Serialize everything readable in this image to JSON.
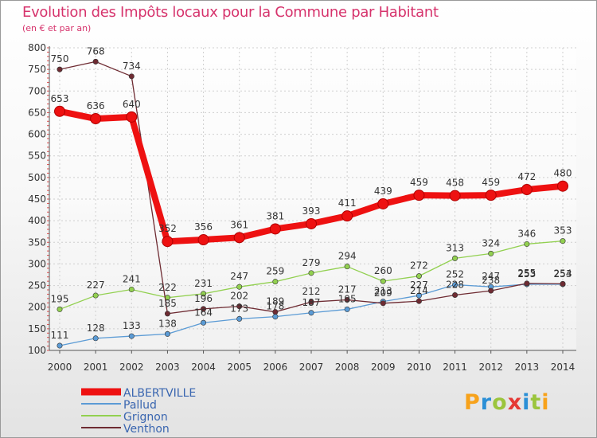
{
  "title": "Evolution des Impôts locaux pour la Commune par Habitant",
  "subtitle": "(en € et par an)",
  "logo": {
    "text": "Proxiti",
    "colors": [
      "#f7a21b",
      "#2b8fd6",
      "#9bc53d",
      "#e53935",
      "#2b8fd6",
      "#9bc53d",
      "#f7a21b"
    ]
  },
  "chart_data": {
    "type": "line",
    "x": [
      "2000",
      "2001",
      "2002",
      "2003",
      "2004",
      "2005",
      "2006",
      "2007",
      "2008",
      "2009",
      "2010",
      "2011",
      "2012",
      "2013",
      "2014"
    ],
    "ylim": [
      100,
      800
    ],
    "yticks": [
      "100",
      "150",
      "200",
      "250",
      "300",
      "350",
      "400",
      "450",
      "500",
      "550",
      "600",
      "650",
      "700",
      "750",
      "800"
    ],
    "grid": true,
    "legend_position": "bottom-left",
    "series": [
      {
        "name": "ALBERTVILLE",
        "color": "#ee1111",
        "thick": true,
        "values": [
          653,
          636,
          640,
          352,
          356,
          361,
          381,
          393,
          411,
          439,
          459,
          458,
          459,
          472,
          480
        ],
        "labels": [
          "653",
          "636",
          "640",
          "352",
          "356",
          "361",
          "381",
          "393",
          "411",
          "439",
          "459",
          "458",
          "459",
          "472",
          "480"
        ]
      },
      {
        "name": "Pallud",
        "color": "#5b9bd5",
        "thick": false,
        "values": [
          111,
          128,
          133,
          138,
          164,
          173,
          178,
          187,
          195,
          213,
          227,
          252,
          247,
          253,
          253
        ],
        "labels": [
          "111",
          "128",
          "133",
          "138",
          "164",
          "173",
          "178",
          "187",
          "195",
          "213",
          "227",
          "252",
          "247",
          "253",
          "253"
        ]
      },
      {
        "name": "Grignon",
        "color": "#92d050",
        "thick": false,
        "values": [
          195,
          227,
          241,
          222,
          231,
          247,
          259,
          279,
          294,
          260,
          272,
          313,
          324,
          346,
          353
        ],
        "labels": [
          "195",
          "227",
          "241",
          "222",
          "231",
          "247",
          "259",
          "279",
          "294",
          "260",
          "272",
          "313",
          "324",
          "346",
          "353"
        ]
      },
      {
        "name": "Venthon",
        "color": "#6e2b32",
        "thick": false,
        "values": [
          750,
          768,
          734,
          185,
          196,
          202,
          189,
          212,
          217,
          209,
          214,
          228,
          238,
          255,
          254
        ],
        "labels": [
          "750",
          "768",
          "734",
          "185",
          "196",
          "202",
          "189",
          "212",
          "217",
          "209",
          "214",
          "228",
          "238",
          "255",
          "254"
        ]
      }
    ]
  }
}
